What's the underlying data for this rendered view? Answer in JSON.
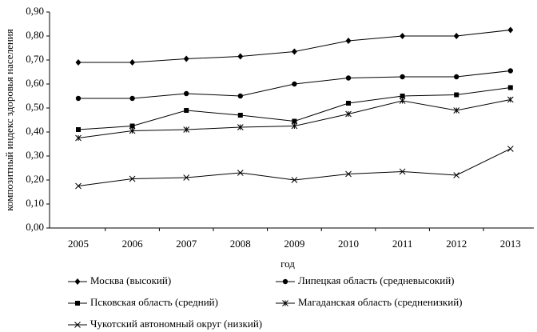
{
  "chart_data": {
    "type": "line",
    "x_label": "год",
    "y_label": "композитный индекс здоровья населения",
    "categories": [
      "2005",
      "2006",
      "2007",
      "2008",
      "2009",
      "2010",
      "2011",
      "2012",
      "2013"
    ],
    "ylim": [
      0,
      0.9
    ],
    "yticks": [
      {
        "value": 0,
        "label": "0,00"
      },
      {
        "value": 0.1,
        "label": "0,10"
      },
      {
        "value": 0.2,
        "label": "0,20"
      },
      {
        "value": 0.3,
        "label": "0,30"
      },
      {
        "value": 0.4,
        "label": "0,40"
      },
      {
        "value": 0.5,
        "label": "0,50"
      },
      {
        "value": 0.6,
        "label": "0,60"
      },
      {
        "value": 0.7,
        "label": "0,70"
      },
      {
        "value": 0.8,
        "label": "0,80"
      },
      {
        "value": 0.9,
        "label": "0,90"
      }
    ],
    "series": [
      {
        "name": "Москва (высокий)",
        "color": "#000000",
        "marker": "diamond",
        "values": [
          0.69,
          0.69,
          0.705,
          0.715,
          0.735,
          0.78,
          0.8,
          0.8,
          0.825
        ]
      },
      {
        "name": "Липецкая область (средневысокий)",
        "color": "#000000",
        "marker": "circle",
        "values": [
          0.54,
          0.54,
          0.56,
          0.55,
          0.6,
          0.625,
          0.63,
          0.63,
          0.655
        ]
      },
      {
        "name": "Псковская область (средний)",
        "color": "#000000",
        "marker": "square",
        "values": [
          0.41,
          0.425,
          0.49,
          0.47,
          0.445,
          0.52,
          0.55,
          0.555,
          0.585
        ]
      },
      {
        "name": "Магаданская область (средненизкий)",
        "color": "#000000",
        "marker": "star",
        "values": [
          0.375,
          0.405,
          0.41,
          0.42,
          0.425,
          0.475,
          0.53,
          0.49,
          0.535
        ]
      },
      {
        "name": "Чукотский автономный округ (низкий)",
        "color": "#000000",
        "marker": "x",
        "values": [
          0.175,
          0.205,
          0.21,
          0.23,
          0.2,
          0.225,
          0.235,
          0.22,
          0.33
        ]
      }
    ]
  }
}
